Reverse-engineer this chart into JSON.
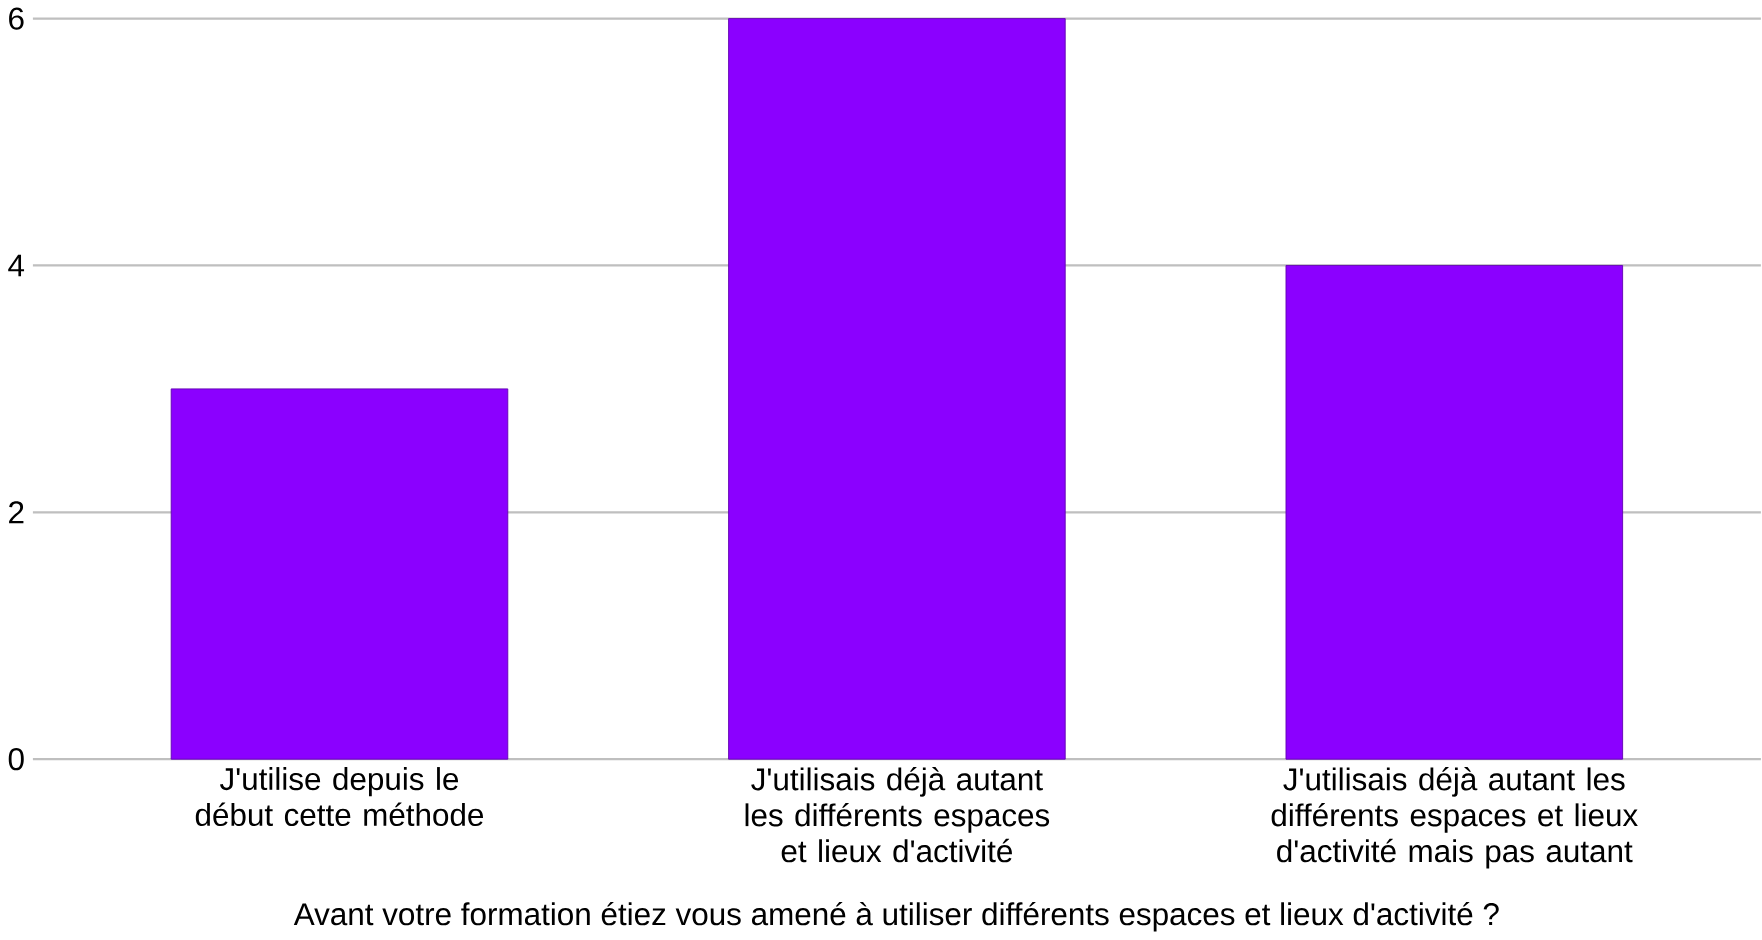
{
  "chart_data": {
    "type": "bar",
    "categories": [
      "J'utilise depuis le début cette méthode",
      "J'utilisais déjà autant les différents espaces et lieux d'activité",
      "J'utilisais déjà autant les différents espaces et lieux d'activité mais pas autant"
    ],
    "values": [
      3,
      6,
      4
    ],
    "color": "#8b00ff",
    "ylim": [
      0,
      6
    ],
    "yticks": [
      0,
      2,
      4,
      6
    ],
    "grid": "y",
    "xlabel": "Avant votre formation étiez vous amené à utiliser différents espaces et lieux d'activité ?"
  }
}
